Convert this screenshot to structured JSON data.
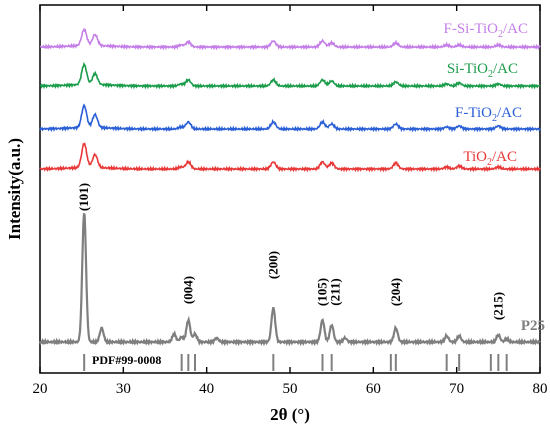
{
  "chart_data": {
    "type": "line",
    "xlabel": "2θ (°)",
    "ylabel": "Intensity(a.u.)",
    "xlim": [
      20,
      80
    ],
    "x_ticks": [
      20,
      30,
      40,
      50,
      60,
      70,
      80
    ],
    "y_ticks_shown": false,
    "grid": false,
    "legend": "none",
    "series": [
      {
        "name": "F-Si-TiO2/AC",
        "label_main": "F-Si-TiO",
        "label_sub": "2",
        "label_tail": "/AC",
        "color": "#c47ee8",
        "peaks": [
          [
            25.3,
            16
          ],
          [
            26.6,
            11
          ],
          [
            36.9,
            2
          ],
          [
            37.8,
            5
          ],
          [
            48.0,
            6
          ],
          [
            53.9,
            6
          ],
          [
            55.0,
            4
          ],
          [
            62.7,
            4
          ],
          [
            68.8,
            2
          ],
          [
            70.3,
            2
          ],
          [
            75.0,
            2
          ]
        ]
      },
      {
        "name": "Si-TiO2/AC",
        "label_main": "Si-TiO",
        "label_sub": "2",
        "label_tail": "/AC",
        "color": "#1a9c4a",
        "peaks": [
          [
            25.3,
            20
          ],
          [
            26.6,
            11
          ],
          [
            36.9,
            2
          ],
          [
            37.8,
            6
          ],
          [
            48.0,
            6
          ],
          [
            53.9,
            6
          ],
          [
            55.0,
            5
          ],
          [
            62.7,
            4
          ],
          [
            68.8,
            2
          ],
          [
            70.3,
            3
          ],
          [
            75.0,
            2
          ]
        ]
      },
      {
        "name": "F-TiO2/AC",
        "label_main": "F-TiO",
        "label_sub": "2",
        "label_tail": "/AC",
        "color": "#2a5fd6",
        "peaks": [
          [
            25.3,
            22
          ],
          [
            26.6,
            13
          ],
          [
            36.9,
            2
          ],
          [
            37.8,
            7
          ],
          [
            48.0,
            7
          ],
          [
            53.9,
            7
          ],
          [
            55.0,
            5
          ],
          [
            62.7,
            5
          ],
          [
            68.8,
            2
          ],
          [
            70.3,
            3
          ],
          [
            75.0,
            3
          ]
        ]
      },
      {
        "name": "TiO2/AC",
        "label_main": "TiO",
        "label_sub": "2",
        "label_tail": "/AC",
        "color": "#e83838",
        "peaks": [
          [
            25.3,
            24
          ],
          [
            26.6,
            13
          ],
          [
            36.9,
            2
          ],
          [
            37.8,
            7
          ],
          [
            48.0,
            7
          ],
          [
            53.9,
            7
          ],
          [
            55.0,
            6
          ],
          [
            62.7,
            6
          ],
          [
            68.8,
            2
          ],
          [
            70.3,
            3
          ],
          [
            75.0,
            2
          ]
        ]
      },
      {
        "name": "P25",
        "label_main": "P25",
        "label_sub": "",
        "label_tail": "",
        "color": "#7f7f7f",
        "peaks": [
          [
            25.3,
            130
          ],
          [
            27.4,
            14
          ],
          [
            36.1,
            8
          ],
          [
            37.0,
            5
          ],
          [
            37.8,
            22
          ],
          [
            38.6,
            8
          ],
          [
            41.2,
            4
          ],
          [
            48.0,
            34
          ],
          [
            53.9,
            22
          ],
          [
            55.0,
            17
          ],
          [
            56.6,
            4
          ],
          [
            62.7,
            14
          ],
          [
            68.8,
            6
          ],
          [
            70.3,
            6
          ],
          [
            75.0,
            7
          ],
          [
            76.0,
            3
          ]
        ]
      }
    ],
    "hkl_labels": [
      {
        "text": "(101)",
        "x": 25.3
      },
      {
        "text": "(004)",
        "x": 37.8
      },
      {
        "text": "(200)",
        "x": 48.0
      },
      {
        "text": "(105)",
        "x": 53.9
      },
      {
        "text": "(211)",
        "x": 55.0
      },
      {
        "text": "(204)",
        "x": 62.7
      },
      {
        "text": "(215)",
        "x": 75.0
      }
    ],
    "reference": {
      "label": "PDF#99-0008",
      "lines": [
        25.3,
        37.0,
        37.8,
        38.6,
        48.0,
        53.9,
        55.0,
        62.1,
        62.7,
        68.8,
        70.3,
        74.1,
        75.0,
        76.0
      ]
    }
  }
}
